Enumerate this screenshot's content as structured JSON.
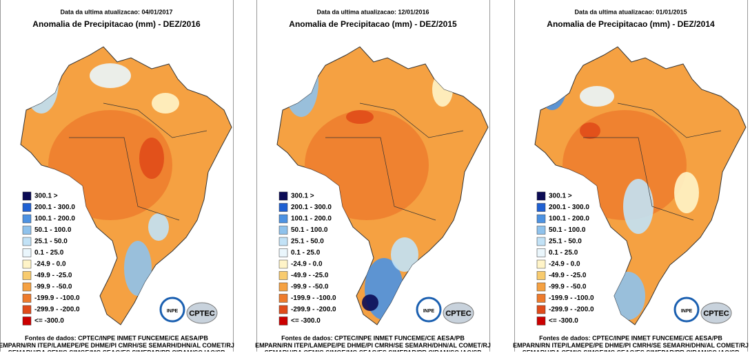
{
  "panels": [
    {
      "update": "Data da ultima atualizacao: 04/01/2017",
      "title": "Anomalia de Precipitacao (mm) - DEZ/2016"
    },
    {
      "update": "Data da ultima atualizacao: 12/01/2016",
      "title": "Anomalia de Precipitacao (mm) - DEZ/2015"
    },
    {
      "update": "Data da ultima atualizacao: 01/01/2015",
      "title": "Anomalia de Precipitacao (mm) - DEZ/2014"
    }
  ],
  "legend": [
    {
      "label": "300.1 >",
      "color": "#0b0b55"
    },
    {
      "label": "200.1 - 300.0",
      "color": "#1f60d2"
    },
    {
      "label": "100.1 - 200.0",
      "color": "#4d92e2"
    },
    {
      "label": "50.1 - 100.0",
      "color": "#8fc2ec"
    },
    {
      "label": "25.1 - 50.0",
      "color": "#c2e2f6"
    },
    {
      "label": "0.1 - 25.0",
      "color": "#eaf6fc"
    },
    {
      "label": "-24.9 - 0.0",
      "color": "#fff4c8"
    },
    {
      "label": "-49.9 - -25.0",
      "color": "#f8cb6e"
    },
    {
      "label": "-99.9 - -50.0",
      "color": "#f5a142"
    },
    {
      "label": "-199.9 - -100.0",
      "color": "#ee7b2c"
    },
    {
      "label": "-299.9 - -200.0",
      "color": "#e04b1a"
    },
    {
      "label": "<= -300.0",
      "color": "#cc0000"
    }
  ],
  "sources": [
    "Fontes de dados: CPTEC/INPE INMET FUNCEME/CE AESA/PB",
    "EMPARN/RN ITEP/LAMEPE/PE DHME/PI CMRH/SE SEMARH/DHN/AL COMET/RJ",
    "SEMARH/BA CEMIG SIMGE/MG SEAG/ES SIMEPAR/PR CIRAM/SC IAC/SP"
  ],
  "logos": {
    "inpe": "INPE",
    "cptec": "CPTEC"
  }
}
